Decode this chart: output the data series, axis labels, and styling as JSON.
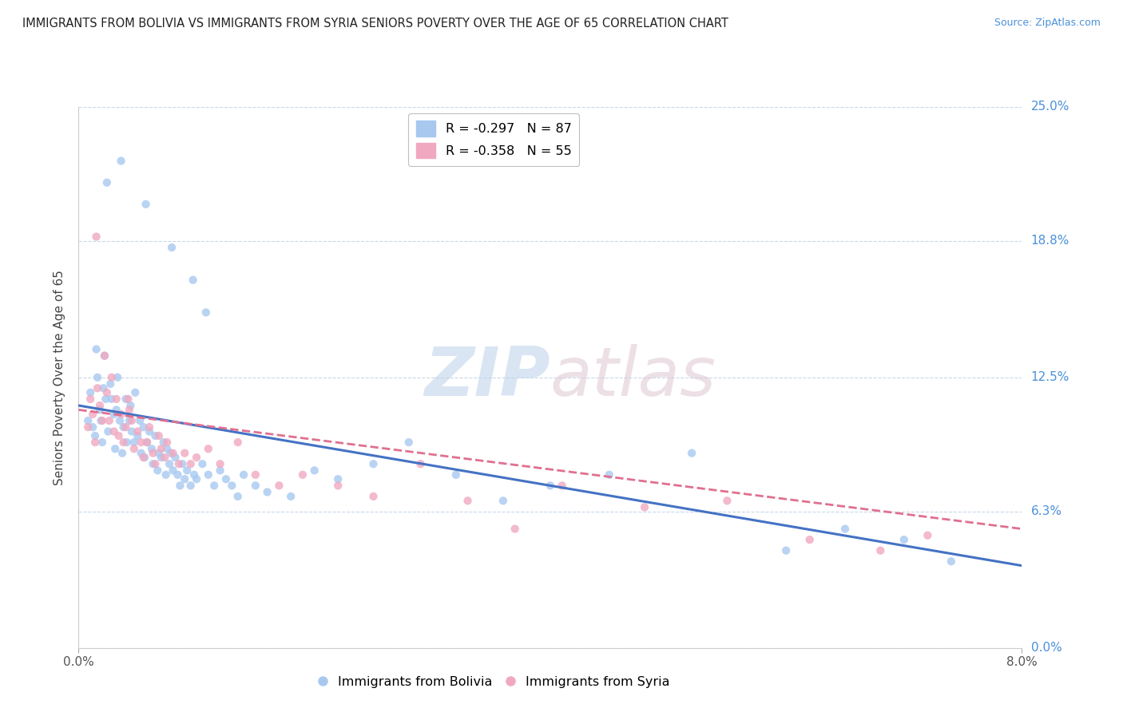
{
  "title": "IMMIGRANTS FROM BOLIVIA VS IMMIGRANTS FROM SYRIA SENIORS POVERTY OVER THE AGE OF 65 CORRELATION CHART",
  "source": "Source: ZipAtlas.com",
  "ylabel": "Seniors Poverty Over the Age of 65",
  "xlim": [
    0.0,
    8.0
  ],
  "ylim": [
    0.0,
    25.0
  ],
  "ytick_labels": [
    "0.0%",
    "6.3%",
    "12.5%",
    "18.8%",
    "25.0%"
  ],
  "ytick_positions": [
    0.0,
    6.3,
    12.5,
    18.8,
    25.0
  ],
  "bolivia_color": "#a8c8f0",
  "syria_color": "#f0a8c0",
  "bolivia_line_color": "#4472c4",
  "syria_line_color": "#e07090",
  "legend_bolivia": "R = -0.297   N = 87",
  "legend_syria": "R = -0.358   N = 55",
  "bolivia_R": -0.297,
  "bolivia_N": 87,
  "syria_R": -0.358,
  "syria_N": 55,
  "bolivia_line_x0": 0.0,
  "bolivia_line_y0": 11.2,
  "bolivia_line_x1": 8.0,
  "bolivia_line_y1": 3.8,
  "syria_line_x0": 0.0,
  "syria_line_y0": 11.0,
  "syria_line_x1": 8.0,
  "syria_line_y1": 5.5,
  "bolivia_x": [
    0.08,
    0.1,
    0.12,
    0.14,
    0.15,
    0.16,
    0.18,
    0.19,
    0.2,
    0.21,
    0.22,
    0.23,
    0.25,
    0.27,
    0.28,
    0.3,
    0.31,
    0.32,
    0.33,
    0.35,
    0.37,
    0.38,
    0.4,
    0.41,
    0.43,
    0.44,
    0.45,
    0.47,
    0.48,
    0.5,
    0.52,
    0.53,
    0.55,
    0.56,
    0.58,
    0.6,
    0.62,
    0.63,
    0.65,
    0.67,
    0.68,
    0.7,
    0.72,
    0.74,
    0.75,
    0.77,
    0.78,
    0.8,
    0.82,
    0.84,
    0.86,
    0.88,
    0.9,
    0.92,
    0.95,
    0.98,
    1.0,
    1.05,
    1.1,
    1.15,
    1.2,
    1.25,
    1.3,
    1.35,
    1.4,
    1.5,
    1.6,
    1.8,
    2.0,
    2.2,
    2.5,
    2.8,
    3.2,
    3.6,
    4.0,
    4.5,
    5.2,
    6.0,
    6.5,
    7.0,
    7.4,
    0.24,
    0.36,
    0.57,
    0.79,
    0.97,
    1.08
  ],
  "bolivia_y": [
    10.5,
    11.8,
    10.2,
    9.8,
    13.8,
    12.5,
    11.0,
    10.5,
    9.5,
    12.0,
    13.5,
    11.5,
    10.0,
    12.2,
    11.5,
    10.8,
    9.2,
    11.0,
    12.5,
    10.5,
    9.0,
    10.2,
    11.5,
    9.5,
    10.5,
    11.2,
    10.0,
    9.5,
    11.8,
    9.8,
    10.5,
    9.0,
    10.2,
    8.8,
    9.5,
    10.0,
    9.2,
    8.5,
    9.8,
    8.2,
    9.0,
    8.8,
    9.5,
    8.0,
    9.2,
    8.5,
    9.0,
    8.2,
    8.8,
    8.0,
    7.5,
    8.5,
    7.8,
    8.2,
    7.5,
    8.0,
    7.8,
    8.5,
    8.0,
    7.5,
    8.2,
    7.8,
    7.5,
    7.0,
    8.0,
    7.5,
    7.2,
    7.0,
    8.2,
    7.8,
    8.5,
    9.5,
    8.0,
    6.8,
    7.5,
    8.0,
    9.0,
    4.5,
    5.5,
    5.0,
    4.0,
    21.5,
    22.5,
    20.5,
    18.5,
    17.0,
    15.5
  ],
  "syria_x": [
    0.08,
    0.1,
    0.12,
    0.14,
    0.16,
    0.18,
    0.2,
    0.22,
    0.24,
    0.26,
    0.28,
    0.3,
    0.32,
    0.34,
    0.36,
    0.38,
    0.4,
    0.43,
    0.45,
    0.47,
    0.5,
    0.53,
    0.55,
    0.58,
    0.6,
    0.63,
    0.65,
    0.68,
    0.7,
    0.73,
    0.75,
    0.8,
    0.85,
    0.9,
    0.95,
    1.0,
    1.1,
    1.2,
    1.35,
    1.5,
    1.7,
    1.9,
    2.2,
    2.5,
    2.9,
    3.3,
    3.7,
    4.1,
    4.8,
    5.5,
    6.2,
    6.8,
    7.2,
    0.15,
    0.42
  ],
  "syria_y": [
    10.2,
    11.5,
    10.8,
    9.5,
    12.0,
    11.2,
    10.5,
    13.5,
    11.8,
    10.5,
    12.5,
    10.0,
    11.5,
    9.8,
    10.8,
    9.5,
    10.2,
    11.0,
    10.5,
    9.2,
    10.0,
    9.5,
    8.8,
    9.5,
    10.2,
    9.0,
    8.5,
    9.8,
    9.2,
    8.8,
    9.5,
    9.0,
    8.5,
    9.0,
    8.5,
    8.8,
    9.2,
    8.5,
    9.5,
    8.0,
    7.5,
    8.0,
    7.5,
    7.0,
    8.5,
    6.8,
    5.5,
    7.5,
    6.5,
    6.8,
    5.0,
    4.5,
    5.2,
    19.0,
    11.5
  ]
}
